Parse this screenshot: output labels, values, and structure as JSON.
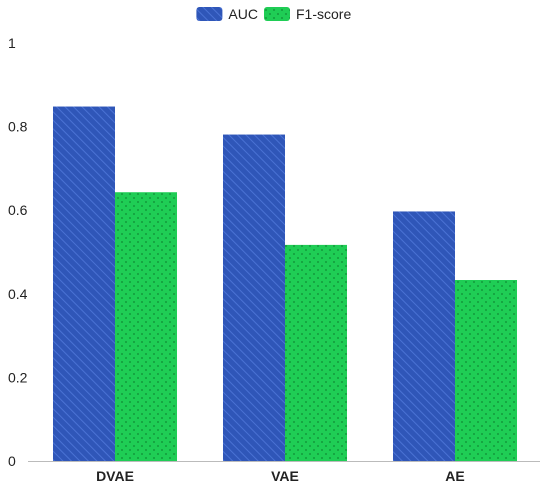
{
  "chart_data": {
    "type": "bar",
    "categories": [
      "DVAE",
      "VAE",
      "AE"
    ],
    "series": [
      {
        "name": "AUC",
        "values": [
          0.848,
          0.781,
          0.597
        ],
        "color": "#2f56b8",
        "pattern": "diagonal-stripes"
      },
      {
        "name": "F1-score",
        "values": [
          0.643,
          0.517,
          0.433
        ],
        "color": "#1fcd55",
        "pattern": "dots"
      }
    ],
    "title": "",
    "xlabel": "",
    "ylabel": "",
    "ylim": [
      0,
      1
    ],
    "yticks": [
      0,
      0.2,
      0.4,
      0.6,
      0.8,
      1
    ],
    "ytick_labels": [
      "0",
      "0.2",
      "0.4",
      "0.6",
      "0.8",
      "1"
    ],
    "grid": false,
    "legend_position": "top-center"
  }
}
